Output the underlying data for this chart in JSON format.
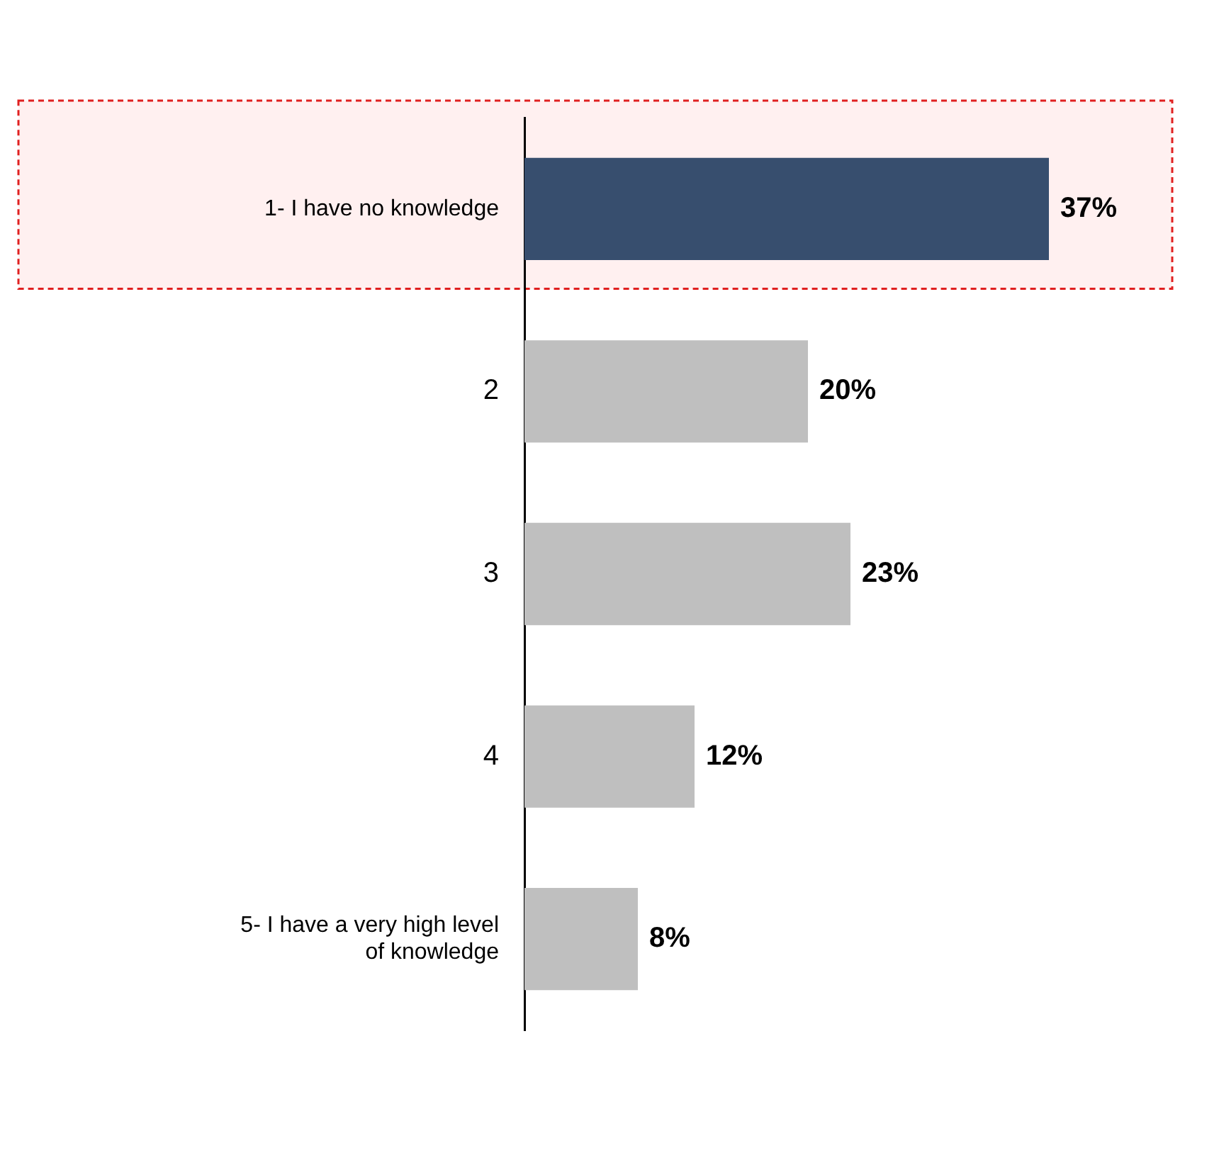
{
  "chart_data": {
    "type": "bar",
    "orientation": "horizontal",
    "categories": [
      "1- I have no knowledge",
      "2",
      "3",
      "4",
      "5- I have a very high level of knowledge"
    ],
    "values": [
      37,
      20,
      23,
      12,
      8
    ],
    "value_labels": [
      "37%",
      "20%",
      "23%",
      "12%",
      "8%"
    ],
    "colors": [
      "#374e6e",
      "#bfbfbf",
      "#bfbfbf",
      "#bfbfbf",
      "#bfbfbf"
    ],
    "bands": [
      {
        "axis": "y",
        "from": "1- I have no knowledge",
        "to": "1- I have no knowledge",
        "color": "#fff0f0"
      }
    ]
  }
}
